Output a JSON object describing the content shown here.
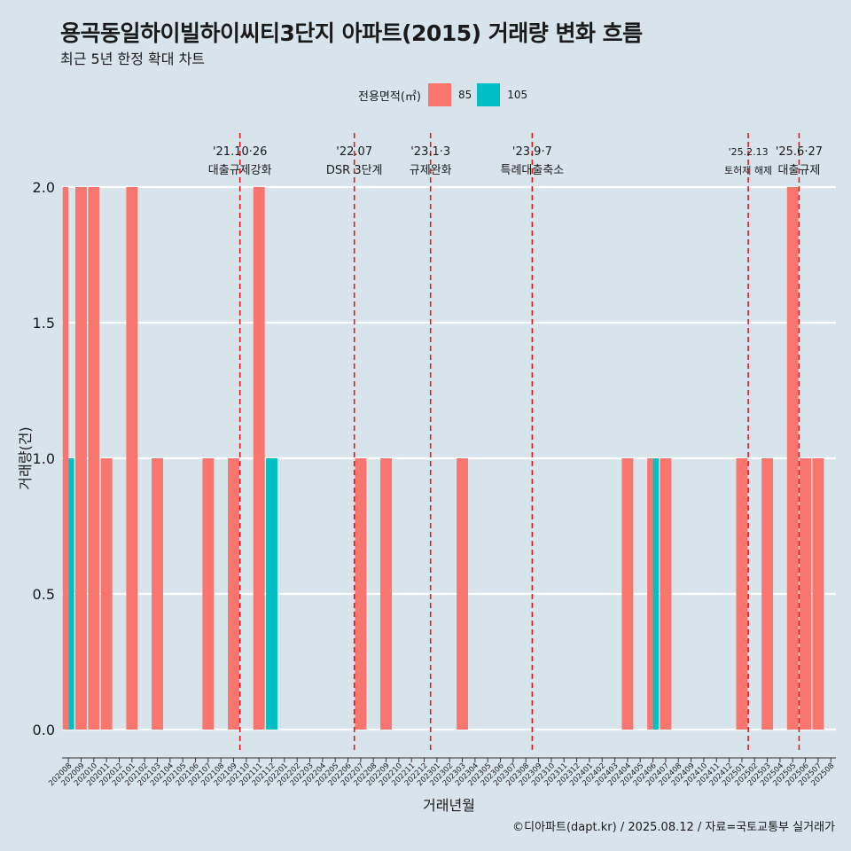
{
  "title": "용곡동일하이빌하이씨티3단지 아파트(2015) 거래량 변화 흐름",
  "subtitle": "최근 5년 한정 확대 차트",
  "caption": "©디아파트(dapt.kr) / 2025.08.12 / 자료=국토교통부 실거래가",
  "legend": {
    "title": "전용면적(㎡)",
    "items": [
      {
        "label": "85",
        "color": "#f8766d"
      },
      {
        "label": "105",
        "color": "#00bfc4"
      }
    ]
  },
  "chart_data": {
    "type": "bar",
    "xlabel": "거래년월",
    "ylabel": "거래량(건)",
    "ylim": [
      0,
      2
    ],
    "yticks": [
      "0.0",
      "0.5",
      "1.0",
      "1.5",
      "2.0"
    ],
    "grid": true,
    "legend_position": "top",
    "categories": [
      "202008",
      "202009",
      "202010",
      "202011",
      "202012",
      "202101",
      "202102",
      "202103",
      "202104",
      "202105",
      "202106",
      "202107",
      "202108",
      "202109",
      "202110",
      "202111",
      "202112",
      "202201",
      "202202",
      "202203",
      "202204",
      "202205",
      "202206",
      "202207",
      "202208",
      "202209",
      "202210",
      "202211",
      "202212",
      "202301",
      "202302",
      "202303",
      "202304",
      "202305",
      "202306",
      "202307",
      "202308",
      "202309",
      "202310",
      "202311",
      "202312",
      "202401",
      "202402",
      "202403",
      "202404",
      "202405",
      "202406",
      "202407",
      "202408",
      "202409",
      "202410",
      "202411",
      "202412",
      "202501",
      "202502",
      "202503",
      "202504",
      "202505",
      "202506",
      "202507",
      "202508"
    ],
    "series": [
      {
        "name": "85",
        "color": "#f8766d",
        "values": [
          2,
          2,
          2,
          1,
          0,
          2,
          0,
          1,
          0,
          0,
          0,
          1,
          0,
          1,
          0,
          2,
          0,
          0,
          0,
          0,
          0,
          0,
          0,
          1,
          0,
          1,
          0,
          0,
          0,
          0,
          0,
          1,
          0,
          0,
          0,
          0,
          0,
          0,
          0,
          0,
          0,
          0,
          0,
          0,
          1,
          0,
          1,
          1,
          0,
          0,
          0,
          0,
          0,
          1,
          0,
          1,
          0,
          2,
          1,
          1,
          0
        ]
      },
      {
        "name": "105",
        "color": "#00bfc4",
        "values": [
          1,
          0,
          0,
          0,
          0,
          0,
          0,
          0,
          0,
          0,
          0,
          0,
          0,
          0,
          0,
          0,
          1,
          0,
          0,
          0,
          0,
          0,
          0,
          0,
          0,
          0,
          0,
          0,
          0,
          0,
          0,
          0,
          0,
          0,
          0,
          0,
          0,
          0,
          0,
          0,
          0,
          0,
          0,
          0,
          0,
          0,
          1,
          0,
          0,
          0,
          0,
          0,
          0,
          0,
          0,
          0,
          0,
          0,
          0,
          0,
          0
        ]
      }
    ],
    "annotations": [
      {
        "x": "202110",
        "date": "'21.10·26",
        "label": "대출규제강화"
      },
      {
        "x": "202207",
        "date": "'22.07",
        "label": "DSR 3단계"
      },
      {
        "x": "202301",
        "date": "'23.1·3",
        "label": "규제완화"
      },
      {
        "x": "202309",
        "date": "'23.9·7",
        "label": "특례대출축소"
      },
      {
        "x": "202502",
        "date": "'25.2.13",
        "label": "토허제 해제"
      },
      {
        "x": "202506",
        "date": "'25.6·27",
        "label": "대출규제"
      }
    ]
  }
}
